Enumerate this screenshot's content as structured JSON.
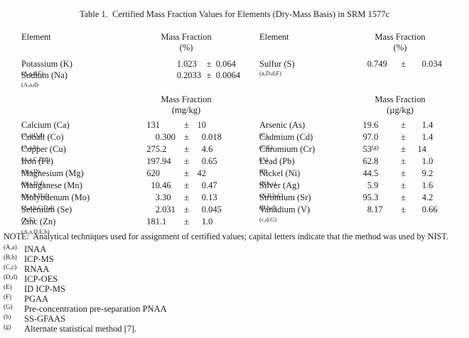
{
  "title": "Table 1.  Certified Mass Fraction Values for Elements (Dry-Mass Basis) in SRM 1577c",
  "headers": {
    "element": "Element",
    "mass_fraction": "Mass Fraction",
    "unit_percent": "(%)",
    "unit_mgkg": "(mg/kg)",
    "unit_ugkg": "(µg/kg)",
    "plus_minus": "±"
  },
  "percent_section": {
    "left_rows": [
      {
        "name": "Potassium (K)",
        "sup": "(A,a,d,F)",
        "value": "1.023",
        "uncertainty": "0.064"
      },
      {
        "name": "Sodium (Na)",
        "sup": "(A,a,d)",
        "value": "0.2033",
        "uncertainty": "0.0064"
      }
    ],
    "right_rows": [
      {
        "name": "Sulfur (S)",
        "sup": "(a,D,d,F)",
        "value": "0.749",
        "uncertainty": "0.034"
      }
    ]
  },
  "trace_section": {
    "left_rows": [
      {
        "name": "Calcium (Ca)",
        "sup": "(A,a,D,d)",
        "value": "131",
        "uncertainty": "10"
      },
      {
        "name": "Cobalt (Co)",
        "sup": "(A,a,b)",
        "value": "0.300",
        "uncertainty": "0.018"
      },
      {
        "name": "Copper (Cu)",
        "sup": "(A,a,C,D,d)",
        "value": "275.2",
        "uncertainty": "4.6"
      },
      {
        "name": "Iron (Fe)",
        "sup": "(A,a,D)",
        "value": "197.94",
        "uncertainty": "0.65"
      },
      {
        "name": "Magnesium (Mg)",
        "sup": "(A,a,D,d)",
        "value": "620",
        "uncertainty": "42"
      },
      {
        "name": "Manganese (Mn)",
        "sup": "(A,a,b,D,d)",
        "value": "10.46",
        "uncertainty": "0.47"
      },
      {
        "name": "Molybdenum (Mo)",
        "sup": "(A,a,b,C,D,d)",
        "value": "3.30",
        "uncertainty": "0.13"
      },
      {
        "name": "Selenium (Se)",
        "sup": "(A,E)",
        "value": "2.031",
        "uncertainty": "0.045"
      },
      {
        "name": "Zinc (Zn)",
        "sup": "(A,a,D,E,h)",
        "value": "181.1",
        "uncertainty": "1.0"
      }
    ],
    "right_rows": [
      {
        "name": "Arsenic (As)",
        "sup": "(C)",
        "value": "19.6",
        "uncertainty": "1.4"
      },
      {
        "name": "Cadmium (Cd)",
        "sup": "(C,E)",
        "value": "97.0",
        "value_sup": "(g)",
        "uncertainty": "1.4"
      },
      {
        "name": "Chromium (Cr)",
        "sup": "(A)",
        "value": "53",
        "uncertainty": "14"
      },
      {
        "name": "Lead (Pb)",
        "sup": "(E)",
        "value": "62.8",
        "uncertainty": "1.0"
      },
      {
        "name": "Nickel (Ni)",
        "sup": "(B,b,c)",
        "value": "44.5",
        "uncertainty": "9.2"
      },
      {
        "name": "Silver (Ag)",
        "sup": "(A,B,b,C)",
        "value": "5.9",
        "uncertainty": "1.6"
      },
      {
        "name": "Strontium (Sr)",
        "sup": "(B,b,d)",
        "value": "95.3",
        "uncertainty": "4.2"
      },
      {
        "name": "Vanadium (V)",
        "sup": "(c,d,G)",
        "value": "8.17",
        "uncertainty": "0.66"
      }
    ]
  },
  "note": {
    "text": "NOTE:  Analytical techniques used for assignment of certified values; capital letters indicate that the method was used by NIST.",
    "items": [
      {
        "marker": "(A,a)",
        "text": "INAA"
      },
      {
        "marker": "(B,b)",
        "text": "ICP-MS"
      },
      {
        "marker": "(C,c)",
        "text": "RNAA"
      },
      {
        "marker": "(D,d)",
        "text": "ICP-OES"
      },
      {
        "marker": "(E)",
        "text": "ID ICP-MS"
      },
      {
        "marker": "(F)",
        "text": "PGAA"
      },
      {
        "marker": "(G)",
        "text": "Pre-concentration pre-separation PNAA"
      },
      {
        "marker": "(h)",
        "text": "SS-GFAAS"
      },
      {
        "marker": "(g)",
        "text": "Alternate statistical method [7]."
      }
    ]
  },
  "colors": {
    "text": "#1f1f1f",
    "background": "#fdfdfd"
  }
}
